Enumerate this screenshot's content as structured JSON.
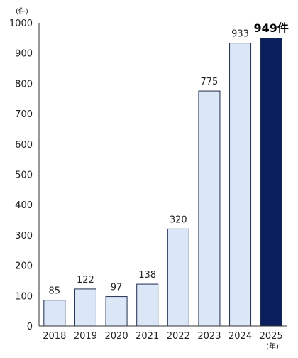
{
  "chart_data": {
    "type": "bar",
    "y_unit_label": "(件)",
    "x_unit_label": "(年)",
    "categories": [
      "2018",
      "2019",
      "2020",
      "2021",
      "2022",
      "2023",
      "2024",
      "2025"
    ],
    "values": [
      85,
      122,
      97,
      138,
      320,
      775,
      933,
      949
    ],
    "data_labels": [
      "85",
      "122",
      "97",
      "138",
      "320",
      "775",
      "933",
      "949件"
    ],
    "highlight_index": 7,
    "ylim": [
      0,
      1000
    ],
    "yticks": [
      0,
      100,
      200,
      300,
      400,
      500,
      600,
      700,
      800,
      900,
      1000
    ],
    "grid": false,
    "colors": {
      "bar_fill": "#dbe7f6",
      "bar_stroke": "#1f2d4f",
      "highlight_fill": "#0b1f5c",
      "axis": "#333333"
    }
  }
}
